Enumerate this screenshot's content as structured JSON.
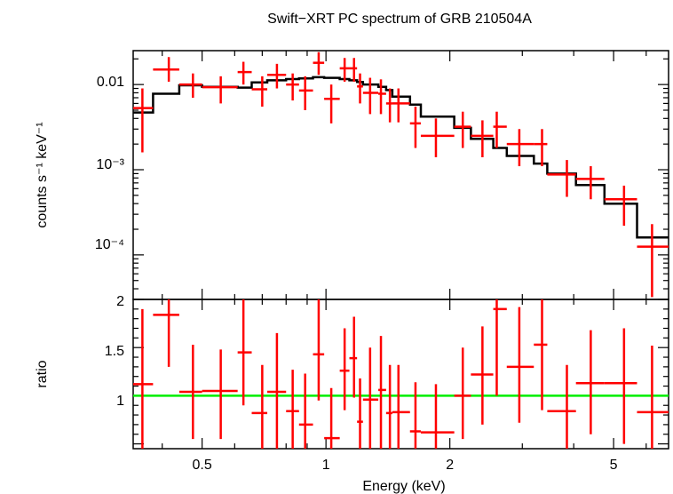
{
  "chart_data": [
    {
      "type": "line",
      "title": "Swift−XRT PC spectrum of GRB 210504A",
      "ylabel": "counts s⁻¹ keV⁻¹",
      "xlabel": "",
      "x_scale": "log",
      "y_scale": "log",
      "xlim": [
        0.34,
        6.8
      ],
      "ylim": [
        3e-05,
        0.025
      ],
      "y_tick_labels": [
        "0.01",
        "10⁻³",
        "10⁻⁴"
      ],
      "grid": false,
      "series": [
        {
          "kind": "data_points_with_errorbars",
          "color": "#ff0000",
          "x": [
            0.358,
            0.415,
            0.475,
            0.555,
            0.63,
            0.7,
            0.76,
            0.83,
            0.89,
            0.96,
            1.03,
            1.11,
            1.17,
            1.21,
            1.28,
            1.36,
            1.43,
            1.5,
            1.65,
            1.85,
            2.15,
            2.4,
            2.6,
            2.95,
            3.35,
            3.85,
            4.4,
            5.3,
            6.2
          ],
          "x_lo": [
            0.34,
            0.38,
            0.44,
            0.5,
            0.61,
            0.66,
            0.72,
            0.8,
            0.86,
            0.93,
            0.99,
            1.08,
            1.14,
            1.19,
            1.23,
            1.34,
            1.4,
            1.45,
            1.6,
            1.7,
            2.05,
            2.25,
            2.55,
            2.75,
            3.2,
            3.45,
            4.05,
            4.75,
            5.7
          ],
          "x_hi": [
            0.38,
            0.44,
            0.5,
            0.61,
            0.66,
            0.72,
            0.8,
            0.86,
            0.93,
            0.99,
            1.08,
            1.14,
            1.19,
            1.23,
            1.34,
            1.4,
            1.45,
            1.6,
            1.7,
            2.05,
            2.25,
            2.55,
            2.75,
            3.2,
            3.45,
            4.05,
            4.75,
            5.7,
            6.8
          ],
          "y": [
            0.0053,
            0.015,
            0.01,
            0.0093,
            0.014,
            0.0088,
            0.013,
            0.01,
            0.0085,
            0.018,
            0.0068,
            0.0155,
            0.0155,
            0.0095,
            0.008,
            0.0078,
            0.006,
            0.006,
            0.0035,
            0.0025,
            0.0032,
            0.0025,
            0.0032,
            0.002,
            0.002,
            0.00088,
            0.00078,
            0.00045,
            0.000125
          ],
          "y_lo": [
            0.0016,
            0.0108,
            0.007,
            0.006,
            0.01,
            0.0055,
            0.009,
            0.0065,
            0.005,
            0.013,
            0.0035,
            0.0108,
            0.0108,
            0.006,
            0.0045,
            0.0045,
            0.0036,
            0.0036,
            0.0018,
            0.0014,
            0.0018,
            0.0014,
            0.0018,
            0.0011,
            0.0011,
            0.00048,
            0.00045,
            0.00022,
            3.2e-05
          ],
          "y_hi": [
            0.009,
            0.021,
            0.0135,
            0.0125,
            0.0185,
            0.0125,
            0.0175,
            0.0135,
            0.0125,
            0.024,
            0.01,
            0.0205,
            0.0205,
            0.0135,
            0.012,
            0.0115,
            0.009,
            0.009,
            0.0055,
            0.004,
            0.0048,
            0.0038,
            0.0048,
            0.003,
            0.003,
            0.0013,
            0.0011,
            0.00065,
            0.00023
          ]
        },
        {
          "kind": "model_step",
          "color": "#000000",
          "edges": [
            0.34,
            0.38,
            0.44,
            0.5,
            0.61,
            0.66,
            0.72,
            0.8,
            0.86,
            0.93,
            0.99,
            1.08,
            1.14,
            1.19,
            1.23,
            1.34,
            1.4,
            1.45,
            1.6,
            1.7,
            2.05,
            2.25,
            2.55,
            2.75,
            3.2,
            3.45,
            4.05,
            4.75,
            5.7,
            6.8
          ],
          "values": [
            0.0047,
            0.0078,
            0.0098,
            0.0094,
            0.0092,
            0.0106,
            0.0112,
            0.0116,
            0.0118,
            0.0122,
            0.012,
            0.0116,
            0.0112,
            0.0107,
            0.01,
            0.0094,
            0.0086,
            0.0072,
            0.0058,
            0.0042,
            0.0031,
            0.0023,
            0.0018,
            0.00145,
            0.00118,
            0.0009,
            0.00066,
            0.0004,
            0.00016
          ]
        }
      ]
    },
    {
      "type": "line",
      "xlabel": "Energy (keV)",
      "ylabel": "ratio",
      "x_scale": "log",
      "y_scale": "linear",
      "xlim": [
        0.34,
        6.8
      ],
      "ylim": [
        0.45,
        2.0
      ],
      "y_tick_labels": [
        "2",
        "1.5",
        "1"
      ],
      "x_tick_labels": [
        "0.5",
        "1",
        "2",
        "5"
      ],
      "x_tick_values": [
        0.5,
        1,
        2,
        5
      ],
      "grid": false,
      "series": [
        {
          "kind": "data_points_with_errorbars",
          "color": "#ff0000",
          "x": [
            0.358,
            0.415,
            0.475,
            0.555,
            0.63,
            0.7,
            0.76,
            0.83,
            0.89,
            0.96,
            1.03,
            1.11,
            1.17,
            1.21,
            1.28,
            1.36,
            1.43,
            1.5,
            1.65,
            1.85,
            2.15,
            2.4,
            2.6,
            2.95,
            3.35,
            3.85,
            4.4,
            5.3,
            6.2
          ],
          "x_lo": [
            0.34,
            0.38,
            0.44,
            0.5,
            0.61,
            0.66,
            0.72,
            0.8,
            0.86,
            0.93,
            0.99,
            1.08,
            1.14,
            1.19,
            1.23,
            1.34,
            1.4,
            1.45,
            1.6,
            1.7,
            2.05,
            2.25,
            2.55,
            2.75,
            3.2,
            3.45,
            4.05,
            4.75,
            5.7
          ],
          "x_hi": [
            0.38,
            0.44,
            0.5,
            0.61,
            0.66,
            0.72,
            0.8,
            0.86,
            0.93,
            0.99,
            1.08,
            1.14,
            1.19,
            1.23,
            1.34,
            1.4,
            1.45,
            1.6,
            1.7,
            2.05,
            2.25,
            2.55,
            2.75,
            3.2,
            3.45,
            4.05,
            4.75,
            5.7,
            6.8
          ],
          "y": [
            1.12,
            1.84,
            1.04,
            1.05,
            1.45,
            0.82,
            1.04,
            0.84,
            0.7,
            1.43,
            0.56,
            1.26,
            1.39,
            0.73,
            0.96,
            1.06,
            0.82,
            0.83,
            0.63,
            0.62,
            1.0,
            1.22,
            1.9,
            1.3,
            1.53,
            0.84,
            1.13,
            1.13,
            0.83
          ],
          "y_lo": [
            0.45,
            1.3,
            0.55,
            0.55,
            0.9,
            0.45,
            0.45,
            0.45,
            0.45,
            0.95,
            0.45,
            0.85,
            0.98,
            0.45,
            0.45,
            0.45,
            0.45,
            0.45,
            0.45,
            0.45,
            0.55,
            0.7,
            1.0,
            0.72,
            0.85,
            0.45,
            0.6,
            0.5,
            0.45
          ],
          "y_hi": [
            1.9,
            2.0,
            1.53,
            1.48,
            2.0,
            1.32,
            1.65,
            1.27,
            1.23,
            2.0,
            1.08,
            1.7,
            1.82,
            1.18,
            1.5,
            1.62,
            1.32,
            1.32,
            1.14,
            1.12,
            1.5,
            1.72,
            2.0,
            1.92,
            2.0,
            1.32,
            1.68,
            1.7,
            1.52
          ]
        },
        {
          "kind": "reference_line",
          "color": "#00ee00",
          "y": 1
        }
      ]
    }
  ]
}
